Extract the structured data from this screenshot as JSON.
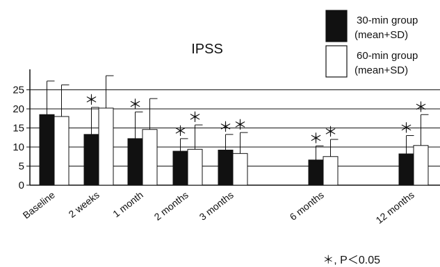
{
  "chart_data": {
    "type": "bar",
    "title": "IPSS",
    "xlabel": "",
    "ylabel": "",
    "ylim": [
      0,
      30
    ],
    "yticks": [
      0,
      5,
      10,
      15,
      20,
      25
    ],
    "grid": "horizontal",
    "legend_position": "top-right",
    "categories": [
      "Baseline",
      "2 weeks",
      "1 month",
      "2 months",
      "3 months",
      "6 months",
      "12 months"
    ],
    "series": [
      {
        "name": "30-min group",
        "legend_sub": "(mean+SD)",
        "color": "#111111",
        "values": [
          18.5,
          13.3,
          12.2,
          8.9,
          9.2,
          6.6,
          8.2
        ],
        "sd": [
          8.8,
          7.1,
          7.0,
          3.3,
          4.1,
          3.7,
          4.8
        ],
        "significant": [
          false,
          true,
          true,
          true,
          true,
          true,
          true
        ]
      },
      {
        "name": "60-min group",
        "legend_sub": "(mean+SD)",
        "color": "#ffffff",
        "values": [
          18.0,
          20.2,
          14.6,
          9.4,
          8.3,
          7.5,
          10.4
        ],
        "sd": [
          8.3,
          8.5,
          8.1,
          6.4,
          5.5,
          4.5,
          8.1
        ],
        "significant": [
          false,
          false,
          false,
          true,
          true,
          true,
          true
        ]
      }
    ],
    "annotation": "＊, P＜0.05"
  }
}
